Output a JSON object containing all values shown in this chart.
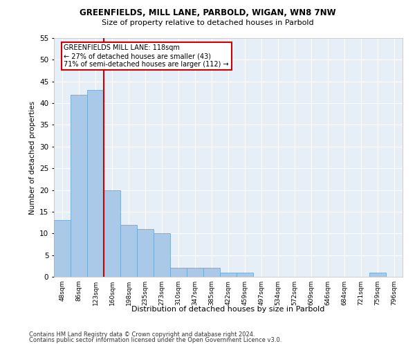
{
  "title1": "GREENFIELDS, MILL LANE, PARBOLD, WIGAN, WN8 7NW",
  "title2": "Size of property relative to detached houses in Parbold",
  "xlabel": "Distribution of detached houses by size in Parbold",
  "ylabel": "Number of detached properties",
  "categories": [
    "48sqm",
    "86sqm",
    "123sqm",
    "160sqm",
    "198sqm",
    "235sqm",
    "273sqm",
    "310sqm",
    "347sqm",
    "385sqm",
    "422sqm",
    "459sqm",
    "497sqm",
    "534sqm",
    "572sqm",
    "609sqm",
    "646sqm",
    "684sqm",
    "721sqm",
    "759sqm",
    "796sqm"
  ],
  "values": [
    13,
    42,
    43,
    20,
    12,
    11,
    10,
    2,
    2,
    2,
    1,
    1,
    0,
    0,
    0,
    0,
    0,
    0,
    0,
    1,
    0
  ],
  "bar_color": "#aac8e8",
  "bar_edge_color": "#6aaad4",
  "bg_color": "#e6eef8",
  "grid_color": "#ffffff",
  "vline_x": 2.5,
  "vline_color": "#cc0000",
  "annotation_text": "GREENFIELDS MILL LANE: 118sqm\n← 27% of detached houses are smaller (43)\n71% of semi-detached houses are larger (112) →",
  "annotation_box_color": "#ffffff",
  "annotation_box_edge": "#cc0000",
  "footnote1": "Contains HM Land Registry data © Crown copyright and database right 2024.",
  "footnote2": "Contains public sector information licensed under the Open Government Licence v3.0.",
  "ylim": [
    0,
    55
  ],
  "yticks": [
    0,
    5,
    10,
    15,
    20,
    25,
    30,
    35,
    40,
    45,
    50,
    55
  ]
}
